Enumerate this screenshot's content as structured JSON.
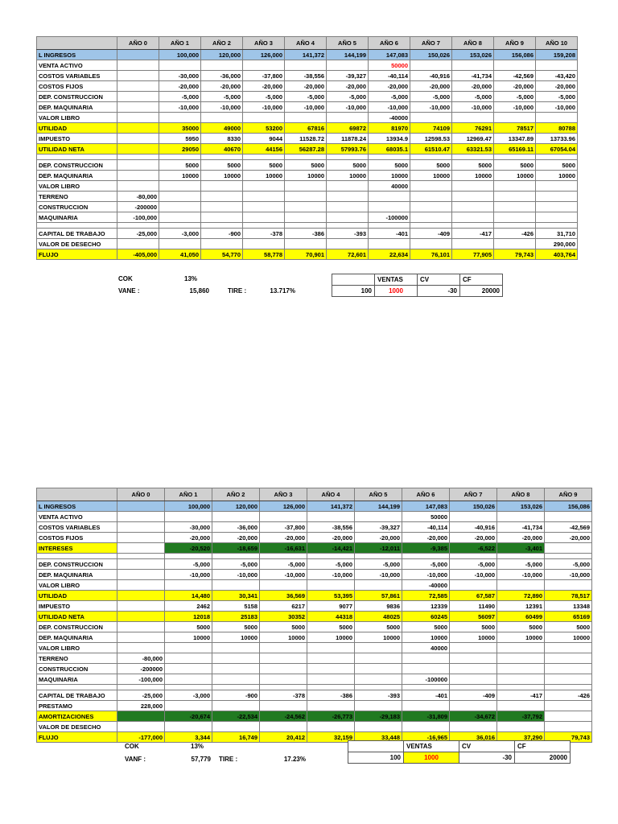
{
  "colors": {
    "highlight_yellow": "#ffff00",
    "highlight_green": "#217a21",
    "income_row_blue": "#9fc5e8",
    "alert_red": "#ff0000",
    "header_gray": "#d0d0d0"
  },
  "table1": {
    "columns": [
      "",
      "AÑO 0",
      "AÑO 1",
      "AÑO 2",
      "AÑO 3",
      "AÑO 4",
      "AÑO 5",
      "AÑO 6",
      "AÑO 7",
      "AÑO 8",
      "AÑO 9",
      "AÑO 10"
    ],
    "rows": [
      {
        "label": "L INGRESOS",
        "style": "blue",
        "cells": [
          "",
          "100,000",
          "120,000",
          "126,000",
          "141,372",
          "144,199",
          "147,083",
          "150,026",
          "153,026",
          "156,086",
          "159,208"
        ]
      },
      {
        "label": "VENTA ACTIVO",
        "cells": [
          "",
          "",
          "",
          "",
          "",
          "",
          "50000",
          "",
          "",
          "",
          ""
        ],
        "cell_styles": {
          "6": "red"
        }
      },
      {
        "label": "COSTOS VARIABLES",
        "cells": [
          "",
          "-30,000",
          "-36,000",
          "-37,800",
          "-38,556",
          "-39,327",
          "-40,114",
          "-40,916",
          "-41,734",
          "-42,569",
          "-43,420"
        ]
      },
      {
        "label": "COSTOS FIJOS",
        "cells": [
          "",
          "-20,000",
          "-20,000",
          "-20,000",
          "-20,000",
          "-20,000",
          "-20,000",
          "-20,000",
          "-20,000",
          "-20,000",
          "-20,000"
        ]
      },
      {
        "label": "DEP. CONSTRUCCION",
        "cells": [
          "",
          "-5,000",
          "-5,000",
          "-5,000",
          "-5,000",
          "-5,000",
          "-5,000",
          "-5,000",
          "-5,000",
          "-5,000",
          "-5,000"
        ]
      },
      {
        "label": "DEP. MAQUINARIA",
        "cells": [
          "",
          "-10,000",
          "-10,000",
          "-10,000",
          "-10,000",
          "-10,000",
          "-10,000",
          "-10,000",
          "-10,000",
          "-10,000",
          "-10,000"
        ]
      },
      {
        "label": "VALOR LIBRO",
        "cells": [
          "",
          "",
          "",
          "",
          "",
          "",
          "-40000",
          "",
          "",
          "",
          ""
        ]
      },
      {
        "label": "UTILIDAD",
        "style": "yellow",
        "cells": [
          "",
          "35000",
          "49000",
          "53200",
          "67816",
          "69872",
          "81970",
          "74109",
          "76291",
          "78517",
          "80788"
        ]
      },
      {
        "label": "IMPUESTO",
        "cells": [
          "",
          "5950",
          "8330",
          "9044",
          "11528.72",
          "11878.24",
          "13934.9",
          "12598.53",
          "12969.47",
          "13347.89",
          "13733.96"
        ]
      },
      {
        "label": "UTILIDAD NETA",
        "style": "yellow",
        "cells": [
          "",
          "29050",
          "40670",
          "44156",
          "56287.28",
          "57993.76",
          "68035.1",
          "61510.47",
          "63321.53",
          "65169.11",
          "67054.04"
        ]
      },
      {
        "style": "spacer"
      },
      {
        "label": "DEP. CONSTRUCCION",
        "cells": [
          "",
          "5000",
          "5000",
          "5000",
          "5000",
          "5000",
          "5000",
          "5000",
          "5000",
          "5000",
          "5000"
        ]
      },
      {
        "label": "DEP. MAQUINARIA",
        "cells": [
          "",
          "10000",
          "10000",
          "10000",
          "10000",
          "10000",
          "10000",
          "10000",
          "10000",
          "10000",
          "10000"
        ]
      },
      {
        "label": "VALOR LIBRO",
        "cells": [
          "",
          "",
          "",
          "",
          "",
          "",
          "40000",
          "",
          "",
          "",
          ""
        ]
      },
      {
        "label": "TERRENO",
        "cells": [
          "-80,000",
          "",
          "",
          "",
          "",
          "",
          "",
          "",
          "",
          "",
          ""
        ]
      },
      {
        "label": "CONSTRUCCION",
        "cells": [
          "-200000",
          "",
          "",
          "",
          "",
          "",
          "",
          "",
          "",
          "",
          ""
        ]
      },
      {
        "label": "MAQUINARIA",
        "cells": [
          "-100,000",
          "",
          "",
          "",
          "",
          "",
          "-100000",
          "",
          "",
          "",
          ""
        ]
      },
      {
        "style": "spacer"
      },
      {
        "label": "CAPITAL DE TRABAJO",
        "cells": [
          "-25,000",
          "-3,000",
          "-900",
          "-378",
          "-386",
          "-393",
          "-401",
          "-409",
          "-417",
          "-426",
          "31,710"
        ]
      },
      {
        "label": "VALOR DE DESECHO",
        "cells": [
          "",
          "",
          "",
          "",
          "",
          "",
          "",
          "",
          "",
          "",
          "290,000"
        ]
      },
      {
        "label": "FLUJO",
        "style": "yellow",
        "cells": [
          "-405,000",
          "41,050",
          "54,770",
          "58,778",
          "70,901",
          "72,601",
          "22,634",
          "76,101",
          "77,905",
          "79,743",
          "403,764"
        ]
      }
    ]
  },
  "summary1": {
    "cok_label": "COK",
    "cok_value": "13%",
    "van_label": "VANE :",
    "van_value": "15,860",
    "tire_label": "TIRE :",
    "tire_value": "13.717%"
  },
  "mini1": {
    "headers": [
      "",
      "VENTAS",
      "CV",
      "CF"
    ],
    "values": [
      "100",
      "1000",
      "-30",
      "20000"
    ]
  },
  "table2": {
    "columns": [
      "",
      "AÑO 0",
      "AÑO 1",
      "AÑO 2",
      "AÑO 3",
      "AÑO 4",
      "AÑO 5",
      "AÑO 6",
      "AÑO 7",
      "AÑO 8",
      "AÑO 9"
    ],
    "rows": [
      {
        "label": "L INGRESOS",
        "style": "blue",
        "cells": [
          "",
          "100,000",
          "120,000",
          "126,000",
          "141,372",
          "144,199",
          "147,083",
          "150,026",
          "153,026",
          "156,086"
        ]
      },
      {
        "label": "VENTA ACTIVO",
        "cells": [
          "",
          "",
          "",
          "",
          "",
          "",
          "50000",
          "",
          "",
          ""
        ]
      },
      {
        "label": "COSTOS VARIABLES",
        "cells": [
          "",
          "-30,000",
          "-36,000",
          "-37,800",
          "-38,556",
          "-39,327",
          "-40,114",
          "-40,916",
          "-41,734",
          "-42,569"
        ]
      },
      {
        "label": "COSTOS FIJOS",
        "cells": [
          "",
          "-20,000",
          "-20,000",
          "-20,000",
          "-20,000",
          "-20,000",
          "-20,000",
          "-20,000",
          "-20,000",
          "-20,000"
        ]
      },
      {
        "label": "INTERESES",
        "style": "ylabel",
        "cells": [
          "",
          "-20,520",
          "-18,659",
          "-16,631",
          "-14,421",
          "-12,011",
          "-9,385",
          "-6,522",
          "-3,401",
          ""
        ],
        "cell_styles": {
          "1": "green",
          "2": "green",
          "3": "green",
          "4": "green",
          "5": "green",
          "6": "green",
          "7": "green",
          "8": "green"
        }
      },
      {
        "style": "spacer"
      },
      {
        "label": "DEP. CONSTRUCCION",
        "cells": [
          "",
          "-5,000",
          "-5,000",
          "-5,000",
          "-5,000",
          "-5,000",
          "-5,000",
          "-5,000",
          "-5,000",
          "-5,000"
        ]
      },
      {
        "label": "DEP. MAQUINARIA",
        "cells": [
          "",
          "-10,000",
          "-10,000",
          "-10,000",
          "-10,000",
          "-10,000",
          "-10,000",
          "-10,000",
          "-10,000",
          "-10,000"
        ]
      },
      {
        "label": "VALOR LIBRO",
        "cells": [
          "",
          "",
          "",
          "",
          "",
          "",
          "-40000",
          "",
          "",
          ""
        ]
      },
      {
        "label": "UTILIDAD",
        "style": "yellow",
        "cells": [
          "",
          "14,480",
          "30,341",
          "36,569",
          "53,395",
          "57,861",
          "72,585",
          "67,587",
          "72,890",
          "78,517"
        ]
      },
      {
        "label": "IMPUESTO",
        "cells": [
          "",
          "2462",
          "5158",
          "6217",
          "9077",
          "9836",
          "12339",
          "11490",
          "12391",
          "13348"
        ]
      },
      {
        "label": "UTILIDAD NETA",
        "style": "yellow",
        "cells": [
          "",
          "12018",
          "25183",
          "30352",
          "44318",
          "48025",
          "60245",
          "56097",
          "60499",
          "65169"
        ]
      },
      {
        "label": "DEP. CONSTRUCCION",
        "cells": [
          "",
          "5000",
          "5000",
          "5000",
          "5000",
          "5000",
          "5000",
          "5000",
          "5000",
          "5000"
        ]
      },
      {
        "label": "DEP. MAQUINARIA",
        "cells": [
          "",
          "10000",
          "10000",
          "10000",
          "10000",
          "10000",
          "10000",
          "10000",
          "10000",
          "10000"
        ]
      },
      {
        "label": "VALOR LIBRO",
        "cells": [
          "",
          "",
          "",
          "",
          "",
          "",
          "40000",
          "",
          "",
          ""
        ]
      },
      {
        "label": "TERRENO",
        "cells": [
          "-80,000",
          "",
          "",
          "",
          "",
          "",
          "",
          "",
          "",
          ""
        ]
      },
      {
        "label": "CONSTRUCCION",
        "cells": [
          "-200000",
          "",
          "",
          "",
          "",
          "",
          "",
          "",
          "",
          ""
        ]
      },
      {
        "label": "MAQUINARIA",
        "cells": [
          "-100,000",
          "",
          "",
          "",
          "",
          "",
          "-100000",
          "",
          "",
          ""
        ]
      },
      {
        "style": "spacer"
      },
      {
        "label": "CAPITAL DE TRABAJO",
        "cells": [
          "-25,000",
          "-3,000",
          "-900",
          "-378",
          "-386",
          "-393",
          "-401",
          "-409",
          "-417",
          "-426"
        ]
      },
      {
        "label": "PRESTAMO",
        "cells": [
          "228,000",
          "",
          "",
          "",
          "",
          "",
          "",
          "",
          "",
          ""
        ]
      },
      {
        "label": "AMORTIZACIONES",
        "style": "ylabel",
        "cells": [
          "",
          "-20,674",
          "-22,534",
          "-24,562",
          "-26,773",
          "-29,183",
          "-31,809",
          "-34,672",
          "-37,792",
          ""
        ],
        "cell_styles": {
          "0": "green",
          "1": "green",
          "2": "green",
          "3": "green",
          "4": "green",
          "5": "green",
          "6": "green",
          "7": "green",
          "8": "green"
        }
      },
      {
        "label": "VALOR DE DESECHO"
      },
      {
        "label": "FLUJO",
        "style": "yellow",
        "cells": [
          "-177,000",
          "3,344",
          "16,749",
          "20,412",
          "32,159",
          "33,448",
          "-16,965",
          "36,016",
          "37,290",
          "79,743"
        ]
      }
    ]
  },
  "summary2": {
    "cok_label": "COK",
    "cok_value": "13%",
    "van_label": "VANF :",
    "van_value": "57,779",
    "tire_label": "TIRE :",
    "tire_value": "17.23%"
  },
  "mini2": {
    "headers": [
      "",
      "VENTAS",
      "CV",
      "CF"
    ],
    "values": [
      "100",
      "1000",
      "-30",
      "20000"
    ]
  }
}
